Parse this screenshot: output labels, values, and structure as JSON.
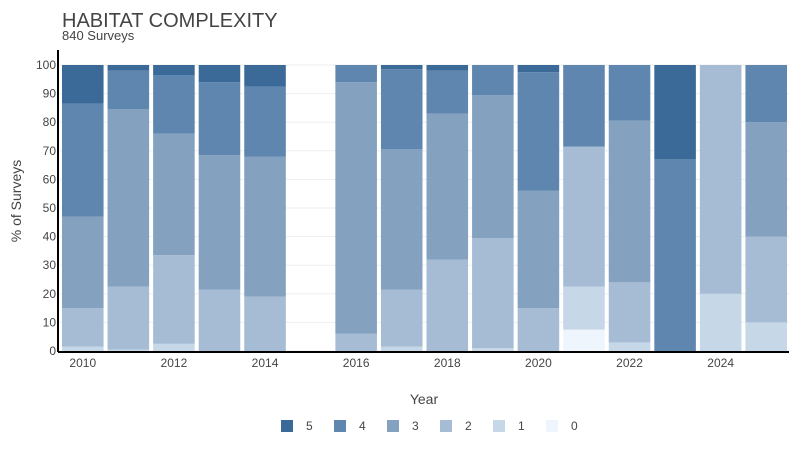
{
  "chart_data": {
    "type": "bar",
    "stacked": true,
    "title": "HABITAT COMPLEXITY",
    "subtitle": "840 Surveys",
    "xlabel": "Year",
    "ylabel": "% of Surveys",
    "ylim": [
      0,
      100
    ],
    "yticks": [
      0,
      10,
      20,
      30,
      40,
      50,
      60,
      70,
      80,
      90,
      100
    ],
    "xticks": [
      2010,
      2012,
      2014,
      2016,
      2018,
      2020,
      2022,
      2024
    ],
    "legend_position": "bottom",
    "grid": true,
    "categories": [
      2010,
      2011,
      2012,
      2013,
      2014,
      2015,
      2016,
      2017,
      2018,
      2019,
      2020,
      2021,
      2022,
      2023,
      2024,
      2025
    ],
    "series": [
      {
        "name": "0",
        "color": "#eef5fc",
        "values": [
          0,
          0,
          0,
          0,
          0,
          0,
          0,
          0,
          0,
          0,
          0,
          7.5,
          0,
          0,
          0,
          0
        ]
      },
      {
        "name": "1",
        "color": "#c6d7e8",
        "values": [
          1.5,
          0.5,
          2.5,
          0,
          0,
          0,
          0,
          1.5,
          0,
          1,
          0,
          15,
          3,
          0,
          20,
          10
        ]
      },
      {
        "name": "2",
        "color": "#a6bcd4",
        "values": [
          13.5,
          22,
          31,
          21.5,
          19,
          0,
          6,
          20,
          32,
          38.5,
          15,
          49,
          21,
          0,
          80,
          30
        ]
      },
      {
        "name": "3",
        "color": "#84a1c0",
        "values": [
          32,
          62,
          42.5,
          47,
          49,
          0,
          88,
          49,
          51,
          50,
          41,
          0,
          56.5,
          0,
          0,
          40
        ]
      },
      {
        "name": "4",
        "color": "#5e86ae",
        "values": [
          39.5,
          13.5,
          20.5,
          25.5,
          24.5,
          0,
          6,
          28,
          15,
          10.5,
          41.5,
          28.5,
          19.5,
          67,
          0,
          20
        ]
      },
      {
        "name": "5",
        "color": "#3b6a98",
        "values": [
          13.5,
          2,
          3.5,
          6,
          7.5,
          0,
          0,
          1.5,
          2,
          0,
          2.5,
          0,
          0,
          33,
          0,
          0
        ]
      }
    ]
  }
}
